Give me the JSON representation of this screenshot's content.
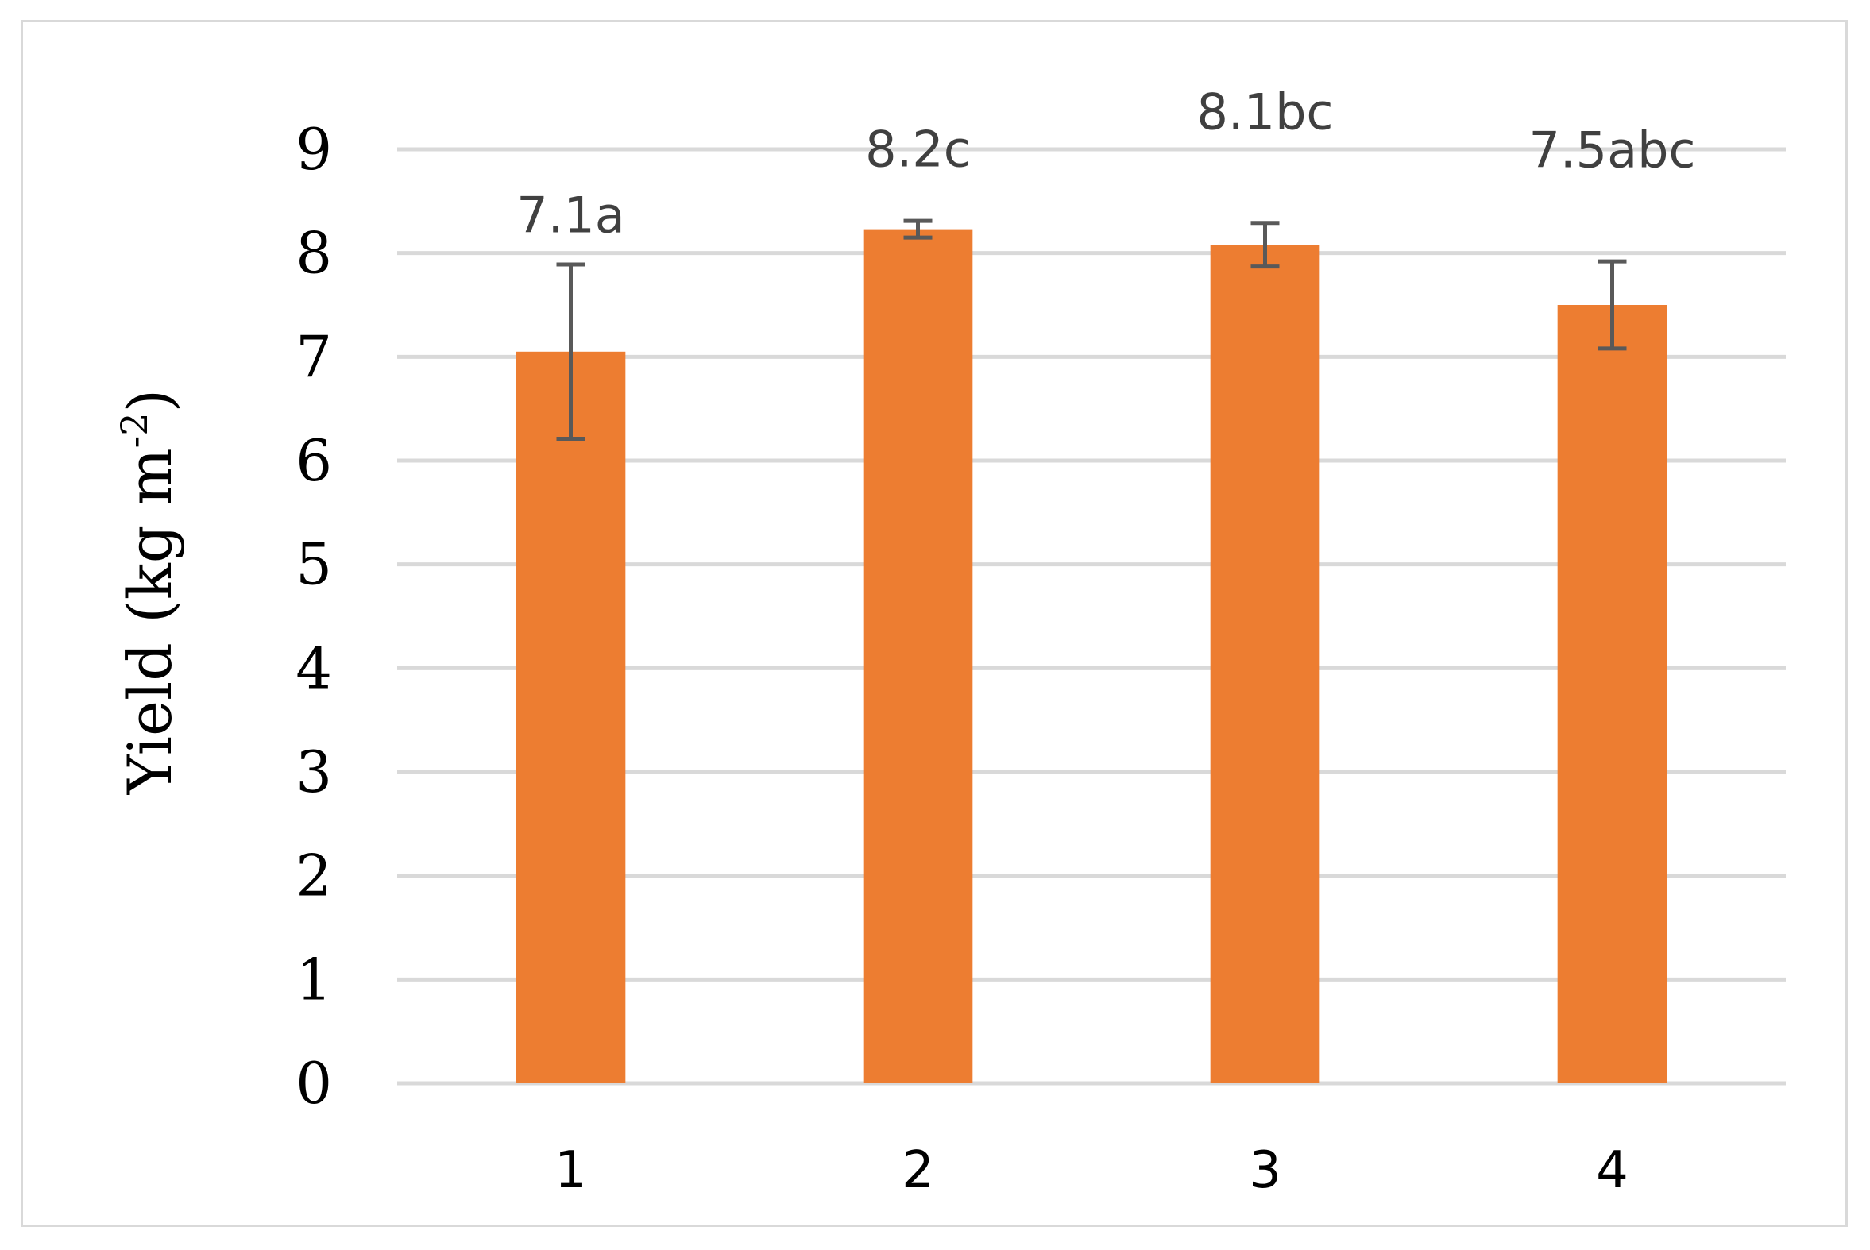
{
  "chart_data": {
    "type": "bar",
    "categories": [
      "1",
      "2",
      "3",
      "4"
    ],
    "values": [
      7.05,
      8.23,
      8.08,
      7.5
    ],
    "error": [
      0.84,
      0.08,
      0.21,
      0.42
    ],
    "data_labels": [
      "7.1a",
      "8.2c",
      "8.1bc",
      "7.5abc"
    ],
    "ylabel_main": "Yield (kg m",
    "ylabel_sup": "-2",
    "ylabel_close": ")",
    "ylim": [
      0,
      9
    ],
    "yticks": [
      "0",
      "1",
      "2",
      "3",
      "4",
      "5",
      "6",
      "7",
      "8",
      "9"
    ],
    "grid": true,
    "bar_color": "#ed7d31",
    "error_color": "#595959",
    "grid_color": "#d9d9d9",
    "label_color": "#404040"
  }
}
